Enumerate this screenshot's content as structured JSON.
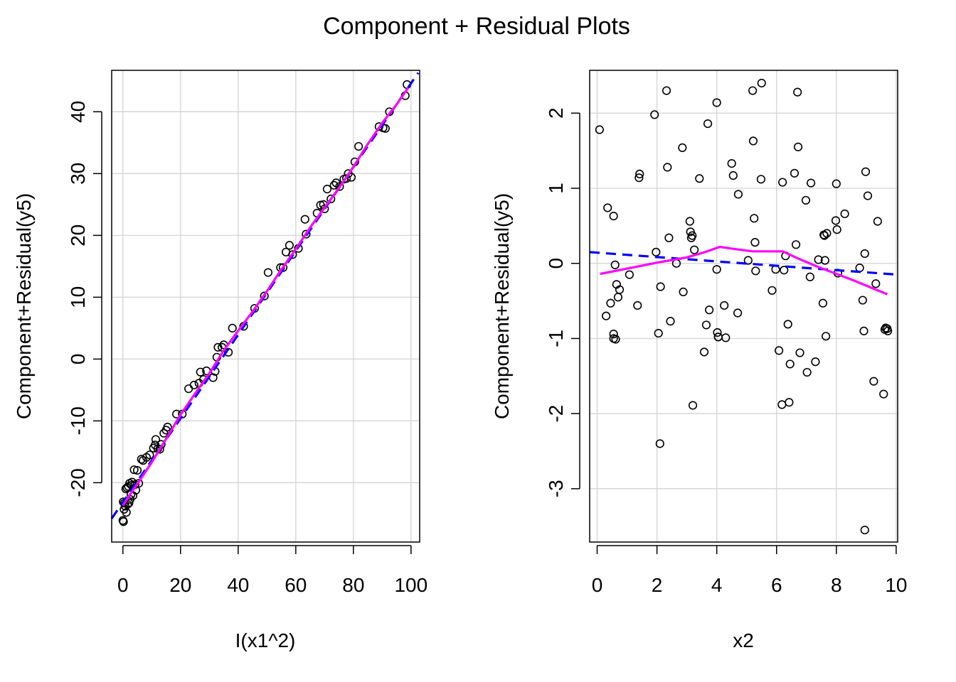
{
  "figure": {
    "title": "Component + Residual Plots"
  },
  "colors": {
    "points": "#000000",
    "grid": "#d3d3d3",
    "fit_line": "#0000ff",
    "smooth_line": "#ff00ff"
  },
  "chart_data": [
    {
      "type": "scatter",
      "id": "left",
      "title": "",
      "xlabel": "I(x1^2)",
      "ylabel": "Component+Residual(y5)",
      "xlim": [
        -3.9,
        103
      ],
      "ylim": [
        -29.6,
        46.7
      ],
      "xticks": [
        0,
        20,
        40,
        60,
        80,
        100
      ],
      "yticks": [
        -20,
        -10,
        0,
        10,
        20,
        30,
        40
      ],
      "ytick_labels": [
        "-20",
        "-10",
        "0",
        "10",
        "20",
        "30",
        "40"
      ],
      "grid": true,
      "fit_line": {
        "name": "linear fit",
        "style": "dashed",
        "x": [
          -3.9,
          102.5
        ],
        "y": [
          -25.8,
          46.3
        ]
      },
      "smooth_line": {
        "name": "smooth",
        "style": "solid",
        "x": [
          0,
          2,
          5,
          10,
          15,
          20,
          25,
          30,
          35,
          40,
          45,
          50,
          55,
          60,
          65,
          70,
          75,
          80,
          85,
          90,
          95,
          99
        ],
        "y": [
          -23.7,
          -22.2,
          -20.2,
          -16.7,
          -12.9,
          -9.0,
          -5.6,
          -2.3,
          1.4,
          4.6,
          7.7,
          11.0,
          14.5,
          17.8,
          21.3,
          24.5,
          27.7,
          31.1,
          34.8,
          38.2,
          41.2,
          43.9
        ]
      },
      "points": {
        "x": [
          0.0,
          0.1,
          0.2,
          0.4,
          0.5,
          0.8,
          1.0,
          1.2,
          1.4,
          1.6,
          1.9,
          2.1,
          2.3,
          2.5,
          2.8,
          3.0,
          3.2,
          3.5,
          3.9,
          4.2,
          4.5,
          5.0,
          5.5,
          6.4,
          7.0,
          8.2,
          9.3,
          10.6,
          11.2,
          11.4,
          12.1,
          12.8,
          13.3,
          14.2,
          15.0,
          15.5,
          18.6,
          20.6,
          22.8,
          24.7,
          26.4,
          26.9,
          28.0,
          29.0,
          31.3,
          32.0,
          32.6,
          33.0,
          34.4,
          35.0,
          36.6,
          38.0,
          41.9,
          45.7,
          49.1,
          50.4,
          54.7,
          55.6,
          56.6,
          57.8,
          58.9,
          60.9,
          63.2,
          63.6,
          67.4,
          68.6,
          69.6,
          70.0,
          70.9,
          72.2,
          73.3,
          74.0,
          75.2,
          76.7,
          77.6,
          78.2,
          79.3,
          80.5,
          81.8,
          88.9,
          90.3,
          91.1,
          92.5,
          98.0,
          98.6
        ],
        "y": [
          -26.1,
          -23.1,
          -26.3,
          -24.3,
          -23.3,
          -23.8,
          -21.0,
          -24.8,
          -20.8,
          -23.5,
          -20.6,
          -23.3,
          -20.1,
          -22.7,
          -21.9,
          -20.4,
          -19.9,
          -22.1,
          -17.9,
          -20.3,
          -21.2,
          -18.0,
          -20.1,
          -16.2,
          -16.4,
          -15.9,
          -15.5,
          -14.4,
          -13.9,
          -13.0,
          -14.5,
          -14.6,
          -13.8,
          -12.0,
          -11.5,
          -11.0,
          -8.9,
          -8.9,
          -4.8,
          -4.2,
          -3.9,
          -2.1,
          -3.3,
          -1.9,
          -3.0,
          -2.0,
          0.3,
          1.9,
          1.9,
          2.3,
          1.1,
          5.0,
          5.3,
          8.2,
          10.2,
          14.0,
          14.8,
          14.8,
          17.3,
          18.4,
          16.9,
          17.9,
          22.6,
          20.2,
          23.6,
          24.9,
          25.0,
          24.3,
          27.5,
          25.9,
          28.1,
          28.5,
          27.9,
          29.1,
          29.2,
          30.0,
          29.4,
          31.9,
          34.4,
          37.6,
          37.4,
          37.3,
          40.0,
          42.6,
          44.4
        ]
      }
    },
    {
      "type": "scatter",
      "id": "right",
      "title": "",
      "xlabel": "x2",
      "ylabel": "Component+Residual(y5)",
      "xlim": [
        -0.25,
        10.05
      ],
      "ylim": [
        -3.71,
        2.57
      ],
      "xticks": [
        0,
        2,
        4,
        6,
        8,
        10
      ],
      "yticks": [
        -3,
        -2,
        -1,
        0,
        1,
        2
      ],
      "ytick_labels": [
        "-3",
        "-2",
        "-1",
        "0",
        "1",
        "2"
      ],
      "grid": true,
      "fit_line": {
        "name": "linear fit",
        "style": "dashed",
        "x": [
          -0.25,
          10.05
        ],
        "y": [
          0.15,
          -0.15
        ]
      },
      "smooth_line": {
        "name": "smooth",
        "style": "solid",
        "x": [
          0.1,
          1.0,
          2.0,
          3.0,
          3.6,
          4.1,
          4.6,
          5.2,
          5.8,
          6.2,
          6.8,
          7.4,
          8.0,
          8.6,
          9.2,
          9.7
        ],
        "y": [
          -0.14,
          -0.07,
          0.01,
          0.08,
          0.15,
          0.22,
          0.19,
          0.16,
          0.16,
          0.16,
          0.05,
          -0.05,
          -0.14,
          -0.23,
          -0.33,
          -0.41
        ]
      },
      "points": {
        "x": [
          0.08,
          0.3,
          0.35,
          0.45,
          0.55,
          0.55,
          0.55,
          0.6,
          0.62,
          0.65,
          0.7,
          0.75,
          1.08,
          1.35,
          1.4,
          1.42,
          1.92,
          1.97,
          2.05,
          2.1,
          2.12,
          2.32,
          2.35,
          2.4,
          2.45,
          2.65,
          2.85,
          2.88,
          3.1,
          3.12,
          3.15,
          3.18,
          3.2,
          3.25,
          3.42,
          3.58,
          3.65,
          3.7,
          3.75,
          4.0,
          4.0,
          4.02,
          4.05,
          4.05,
          4.25,
          4.3,
          4.5,
          4.55,
          4.7,
          4.72,
          5.05,
          5.2,
          5.22,
          5.25,
          5.28,
          5.3,
          5.48,
          5.5,
          5.85,
          5.97,
          6.08,
          6.18,
          6.2,
          6.25,
          6.3,
          6.38,
          6.42,
          6.45,
          6.6,
          6.65,
          6.7,
          6.72,
          6.78,
          6.98,
          7.02,
          7.12,
          7.15,
          7.3,
          7.4,
          7.55,
          7.58,
          7.6,
          7.62,
          7.65,
          7.68,
          7.98,
          8.0,
          8.02,
          8.05,
          8.28,
          8.78,
          8.88,
          8.92,
          8.95,
          8.98,
          9.05,
          9.25,
          9.32,
          9.38,
          9.58,
          9.62,
          9.65,
          9.7,
          9.72,
          8.95
        ],
        "y": [
          1.78,
          -0.7,
          0.74,
          -0.53,
          -0.94,
          -1.0,
          0.63,
          -0.02,
          -1.01,
          -0.28,
          -0.45,
          -0.35,
          -0.15,
          -0.56,
          1.14,
          1.19,
          1.98,
          0.15,
          -0.93,
          -2.4,
          -0.31,
          2.3,
          1.28,
          0.34,
          -0.77,
          0.0,
          1.54,
          -0.38,
          0.56,
          0.42,
          0.34,
          0.37,
          -1.89,
          0.18,
          1.13,
          -1.18,
          -0.82,
          1.86,
          -0.62,
          2.14,
          -0.08,
          -0.92,
          -0.98,
          -0.98,
          -0.56,
          -0.99,
          1.33,
          1.17,
          -0.66,
          0.92,
          0.04,
          2.3,
          1.63,
          0.6,
          0.28,
          -0.1,
          1.12,
          2.4,
          -0.36,
          -0.08,
          -1.16,
          -1.88,
          1.08,
          -0.09,
          0.1,
          -0.81,
          -1.85,
          -1.34,
          1.2,
          0.25,
          2.28,
          1.55,
          -1.19,
          0.84,
          -1.45,
          -0.18,
          1.07,
          -1.31,
          0.05,
          -0.53,
          0.38,
          0.37,
          0.04,
          -0.97,
          0.4,
          0.57,
          1.06,
          0.45,
          -0.13,
          0.66,
          -0.06,
          -0.49,
          -0.9,
          0.13,
          1.22,
          0.9,
          -1.57,
          -0.27,
          0.56,
          -1.74,
          -0.88,
          -0.86,
          -0.87,
          -0.9,
          -3.55
        ]
      }
    }
  ]
}
